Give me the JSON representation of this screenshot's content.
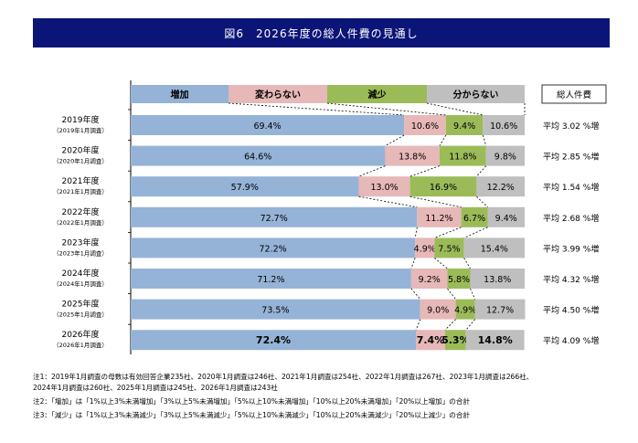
{
  "title": "図6　2026年度の総人件費の見通し",
  "chart_data": {
    "type": "bar",
    "stacked": true,
    "orientation": "horizontal",
    "legend": [
      "増加",
      "変わらない",
      "減少",
      "分からない"
    ],
    "colors": [
      "#95b3d7",
      "#e6b8b7",
      "#9bbb59",
      "#bfbfbf"
    ],
    "right_header": "総人件費",
    "categories": [
      {
        "year": "2019年度",
        "survey": "（2019年1月調査）"
      },
      {
        "year": "2020年度",
        "survey": "（2020年1月調査）"
      },
      {
        "year": "2021年度",
        "survey": "（2021年1月調査）"
      },
      {
        "year": "2022年度",
        "survey": "（2022年1月調査）"
      },
      {
        "year": "2023年度",
        "survey": "（2023年1月調査）"
      },
      {
        "year": "2024年度",
        "survey": "（2024年1月調査）"
      },
      {
        "year": "2025年度",
        "survey": "（2025年1月調査）"
      },
      {
        "year": "2026年度",
        "survey": "（2026年1月調査）"
      }
    ],
    "series": [
      {
        "name": "増加",
        "values": [
          69.4,
          64.6,
          57.9,
          72.7,
          72.2,
          71.2,
          73.5,
          72.4
        ]
      },
      {
        "name": "変わらない",
        "values": [
          10.6,
          13.8,
          13.0,
          11.2,
          4.9,
          9.2,
          9.0,
          7.4
        ]
      },
      {
        "name": "減少",
        "values": [
          9.4,
          11.8,
          16.9,
          6.7,
          7.5,
          5.8,
          4.9,
          5.3
        ]
      },
      {
        "name": "分からない",
        "values": [
          10.6,
          9.8,
          12.2,
          9.4,
          15.4,
          13.8,
          12.7,
          14.8
        ]
      }
    ],
    "averages": [
      "平均 3.02 %増",
      "平均 2.85 %増",
      "平均 1.54 %増",
      "平均 2.68 %増",
      "平均 3.99 %増",
      "平均 4.32 %増",
      "平均 4.50 %増",
      "平均 4.09 %増"
    ],
    "xlim": [
      0,
      100
    ]
  },
  "notes": [
    "注1：2019年1月調査の母数は有効回答企業235社、2020年1月調査は246社、2021年1月調査は254社、2022年1月調査は267社、2023年1月調査は266社、",
    "2024年1月調査は260社、2025年1月調査は245社、2026年1月調査は243社",
    "注2：「増加」は「1%以上3%未満増加」「3%以上5%未満増加」「5%以上10%未満増加」「10%以上20%未満増加」「20%以上増加」の合計",
    "注3：「減少」は「1%以上3%未満減少」「3%以上5%未満減少」「5%以上10%未満減少」「10%以上20%未満減少」「20%以上減少」の合計"
  ]
}
